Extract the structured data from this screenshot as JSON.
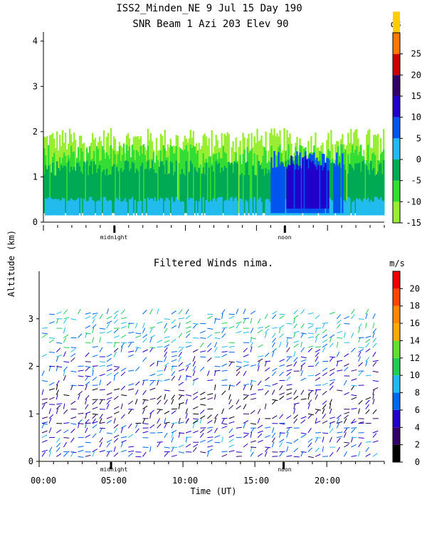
{
  "header": {
    "title_line1": "ISS2_Minden_NE   9 Jul 15 Day 190",
    "title_line2": "SNR Beam 1 Azi 203 Elev 90"
  },
  "shared": {
    "ylabel": "Altitude (km)",
    "xlabel": "Time (UT)",
    "x_ticks": [
      "00:00",
      "05:00",
      "10:00",
      "15:00",
      "20:00"
    ],
    "markers": [
      "midnight",
      "noon"
    ]
  },
  "colors": {
    "snr_scale": [
      "#99ee33",
      "#33dd33",
      "#00aa55",
      "#22bbee",
      "#0055ee",
      "#2200cc",
      "#330066",
      "#cc0000",
      "#ff7700",
      "#ffcc00"
    ],
    "wind_scale": [
      "#000000",
      "#330066",
      "#2200cc",
      "#0066ee",
      "#22bbee",
      "#22cc55",
      "#66dd33",
      "#ffaa00",
      "#ff8800",
      "#ff4400",
      "#ee0000"
    ]
  },
  "chart_data": [
    {
      "type": "heatmap",
      "title": "SNR Beam 1 Azi 203 Elev 90",
      "xlabel": "",
      "ylabel": "Altitude (km)",
      "xlim": [
        0,
        24
      ],
      "ylim": [
        0,
        4.2
      ],
      "y_ticks": [
        0,
        1,
        2,
        3,
        4
      ],
      "markers": [
        {
          "label": "midnight",
          "x": 5
        },
        {
          "label": "noon",
          "x": 17
        }
      ],
      "colorbar": {
        "unit": "dB",
        "range": [
          -15,
          30
        ],
        "ticks": [
          -15,
          -10,
          -5,
          0,
          5,
          10,
          15,
          20,
          25
        ]
      },
      "description_layers": [
        {
          "level": -13,
          "x": [
            0,
            24
          ],
          "y": [
            0.2,
            1.8
          ]
        },
        {
          "level": -8,
          "x": [
            0,
            24
          ],
          "y": [
            0.2,
            1.5
          ]
        },
        {
          "level": -3,
          "x": [
            0,
            24
          ],
          "y": [
            0.2,
            1.2
          ]
        },
        {
          "level": 2,
          "x": [
            0,
            24
          ],
          "y": [
            0.15,
            0.5
          ]
        },
        {
          "level": 8,
          "x": [
            16,
            21
          ],
          "y": [
            0.2,
            1.4
          ]
        },
        {
          "level": 14,
          "x": [
            17,
            20
          ],
          "y": [
            0.3,
            1.3
          ]
        }
      ]
    },
    {
      "type": "scatter",
      "title": "Filtered Winds nima.",
      "xlabel": "Time (UT)",
      "ylabel": "Altitude (km)",
      "xlim": [
        0,
        24
      ],
      "ylim": [
        0,
        4
      ],
      "y_ticks": [
        0,
        1,
        2,
        3
      ],
      "markers": [
        {
          "label": "midnight",
          "x": 5
        },
        {
          "label": "noon",
          "x": 17
        }
      ],
      "colorbar": {
        "unit": "m/s",
        "range": [
          0,
          22
        ],
        "ticks": [
          0,
          2,
          4,
          6,
          8,
          10,
          12,
          14,
          16,
          18,
          20
        ]
      },
      "speed_bands": [
        {
          "y": [
            0.1,
            0.8
          ],
          "speed": 6
        },
        {
          "y": [
            0.8,
            1.6
          ],
          "speed": 3
        },
        {
          "y": [
            1.6,
            2.4
          ],
          "speed": 6
        },
        {
          "y": [
            2.4,
            3.2
          ],
          "speed": 9
        }
      ]
    }
  ]
}
